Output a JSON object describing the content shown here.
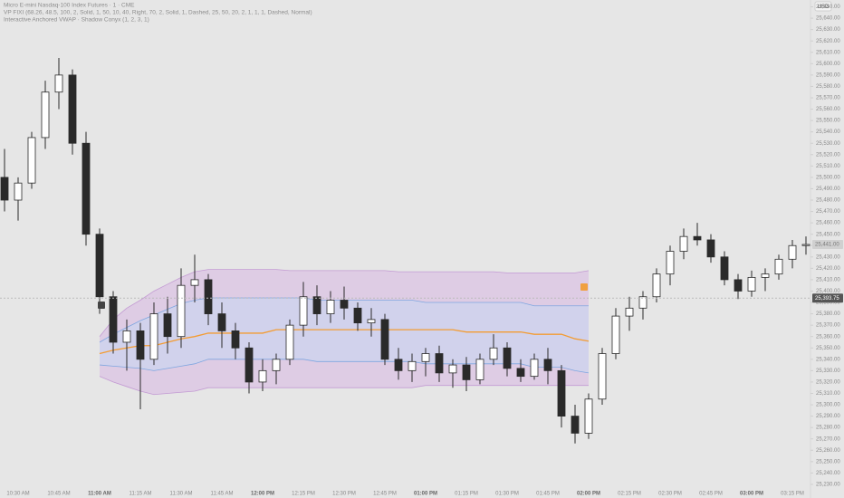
{
  "header": {
    "symbol": "Micro E-mini Nasdaq-100 Index Futures · 1 · CME",
    "indicator_1": "VP FIXI (68.26, 48.5, 100, 2, Solid, 1, 50, 10, 40, Right, 70, 2, Solid, 1, Dashed, 25, 50, 20, 2, 1, 1, 1, Dashed, Normal)",
    "indicator_2": "Interactive Anchored VWAP · Shadow Conyx (1, 2, 3, 1)",
    "currency": "USD"
  },
  "chart_data": {
    "type": "candlestick",
    "grid": false,
    "categories": [
      null,
      "10:30 AM",
      null,
      null,
      "10:45 AM",
      null,
      null,
      "11:00 AM",
      null,
      null,
      "11:15 AM",
      null,
      null,
      "11:30 AM",
      null,
      null,
      "11:45 AM",
      null,
      null,
      "12:00 PM",
      null,
      null,
      "12:15 PM",
      null,
      null,
      "12:30 PM",
      null,
      null,
      "12:45 PM",
      null,
      null,
      "01:00 PM",
      null,
      null,
      "01:15 PM",
      null,
      null,
      "01:30 PM",
      null,
      null,
      "01:45 PM",
      null,
      null,
      "02:00 PM",
      null,
      null,
      "02:15 PM",
      null,
      null,
      "02:30 PM",
      null,
      null,
      "02:45 PM",
      null,
      null,
      "03:00 PM",
      null,
      null,
      "03:15 PM",
      null
    ],
    "open": [
      25500,
      25480,
      25495,
      25535,
      25575,
      25590,
      25530,
      25450,
      25395,
      25355,
      25365,
      25340,
      25380,
      25360,
      25405,
      25410,
      25380,
      25365,
      25350,
      25320,
      25330,
      25340,
      25370,
      25395,
      25380,
      25392,
      25385,
      25372,
      25375,
      25340,
      25330,
      25338,
      25345,
      25328,
      25335,
      25322,
      25340,
      25350,
      25332,
      25325,
      25340,
      25330,
      25290,
      25275,
      25305,
      25345,
      25378,
      25385,
      25395,
      25415,
      25435,
      25448,
      25445,
      25430,
      25410,
      25400,
      25412,
      25415,
      25428,
      25440
    ],
    "high": [
      25525,
      25500,
      25540,
      25585,
      25605,
      25595,
      25540,
      25455,
      25400,
      25375,
      25372,
      25390,
      25395,
      25420,
      25432,
      25415,
      25390,
      25372,
      25355,
      25340,
      25345,
      25375,
      25408,
      25405,
      25400,
      25404,
      25390,
      25385,
      25380,
      25350,
      25345,
      25350,
      25352,
      25340,
      25342,
      25345,
      25362,
      25355,
      25340,
      25345,
      25350,
      25335,
      25300,
      25310,
      25350,
      25385,
      25395,
      25400,
      25420,
      25440,
      25455,
      25460,
      25450,
      25435,
      25415,
      25418,
      25420,
      25432,
      25445,
      25448
    ],
    "low": [
      25470,
      25462,
      25490,
      25525,
      25560,
      25520,
      25440,
      25380,
      25345,
      25330,
      25296,
      25335,
      25345,
      25350,
      25390,
      25370,
      25350,
      25340,
      25310,
      25312,
      25318,
      25335,
      25360,
      25370,
      25372,
      25375,
      25365,
      25360,
      25335,
      25322,
      25320,
      25325,
      25320,
      25315,
      25312,
      25318,
      25335,
      25325,
      25320,
      25322,
      25318,
      25280,
      25266,
      25270,
      25300,
      25340,
      25365,
      25375,
      25390,
      25405,
      25428,
      25440,
      25425,
      25405,
      25393,
      25395,
      25400,
      25410,
      25420,
      25432
    ],
    "close": [
      25480,
      25495,
      25535,
      25575,
      25590,
      25530,
      25450,
      25395,
      25355,
      25365,
      25340,
      25380,
      25360,
      25405,
      25410,
      25380,
      25365,
      25350,
      25320,
      25330,
      25340,
      25370,
      25395,
      25380,
      25392,
      25385,
      25372,
      25375,
      25340,
      25330,
      25338,
      25345,
      25328,
      25335,
      25322,
      25340,
      25350,
      25332,
      25325,
      25340,
      25330,
      25290,
      25275,
      25305,
      25345,
      25378,
      25385,
      25395,
      25415,
      25435,
      25448,
      25445,
      25430,
      25410,
      25400,
      25412,
      25415,
      25428,
      25440,
      25441
    ],
    "up_color": "#ffffff",
    "down_color": "#2a2a2a",
    "wick_color": "#2a2a2a",
    "bands": [
      {
        "color": "#c39bd3",
        "fill": "#dcc6e4",
        "values": [
          null,
          null,
          null,
          null,
          null,
          null,
          null,
          25360,
          25375,
          25385,
          25392,
          25400,
          25406,
          25412,
          25417,
          25419,
          25419,
          25419,
          25419,
          25419,
          25419,
          25418,
          25418,
          25418,
          25418,
          25418,
          25418,
          25418,
          25418,
          25417,
          25417,
          25417,
          25417,
          25417,
          25417,
          25417,
          25417,
          25416,
          25416,
          25416,
          25416,
          25416,
          25416,
          25418,
          null,
          null,
          null,
          null,
          null,
          null,
          null,
          null,
          null,
          null,
          null,
          null,
          null,
          null,
          null,
          null
        ]
      },
      {
        "color": "#7ea6e0",
        "fill": "#cdd3ee",
        "values": [
          null,
          null,
          null,
          null,
          null,
          null,
          null,
          25355,
          25362,
          25368,
          25374,
          25379,
          25384,
          25389,
          25392,
          25394,
          25394,
          25394,
          25394,
          25394,
          25394,
          25394,
          25394,
          25392,
          25392,
          25392,
          25392,
          25392,
          25392,
          25392,
          25392,
          25390,
          25390,
          25390,
          25390,
          25390,
          25390,
          25390,
          25390,
          25387,
          25387,
          25387,
          25387,
          25387,
          null,
          null,
          null,
          null,
          null,
          null,
          null,
          null,
          null,
          null,
          null,
          null,
          null,
          null,
          null,
          null
        ]
      },
      {
        "color": "#f39c33",
        "values": [
          null,
          null,
          null,
          null,
          null,
          null,
          null,
          25345,
          25348,
          25350,
          25352,
          25352,
          25355,
          25358,
          25360,
          25363,
          25363,
          25363,
          25363,
          25363,
          25366,
          25366,
          25366,
          25366,
          25366,
          25366,
          25366,
          25366,
          25366,
          25366,
          25366,
          25366,
          25366,
          25366,
          25364,
          25364,
          25364,
          25364,
          25364,
          25362,
          25362,
          25362,
          25358,
          25356,
          null,
          null,
          null,
          null,
          null,
          null,
          null,
          null,
          null,
          null,
          null,
          null,
          null,
          null,
          null,
          null
        ]
      },
      {
        "color": "#7ea6e0",
        "values": [
          null,
          null,
          null,
          null,
          null,
          null,
          null,
          25335,
          25334,
          25333,
          25332,
          25330,
          25332,
          25334,
          25336,
          25340,
          25340,
          25340,
          25340,
          25340,
          25340,
          25340,
          25340,
          25338,
          25338,
          25338,
          25338,
          25338,
          25338,
          25338,
          25338,
          25336,
          25336,
          25336,
          25336,
          25336,
          25336,
          25336,
          25336,
          25333,
          25333,
          25333,
          25330,
          25328,
          null,
          null,
          null,
          null,
          null,
          null,
          null,
          null,
          null,
          null,
          null,
          null,
          null,
          null,
          null,
          null
        ]
      },
      {
        "color": "#c39bd3",
        "values": [
          null,
          null,
          null,
          null,
          null,
          null,
          null,
          25325,
          25320,
          25316,
          25312,
          25309,
          25310,
          25311,
          25312,
          25315,
          25315,
          25315,
          25315,
          25315,
          25315,
          25315,
          25315,
          25315,
          25315,
          25315,
          25315,
          25315,
          25315,
          25315,
          25315,
          25317,
          25317,
          25317,
          25317,
          25317,
          25317,
          25317,
          25317,
          25317,
          25317,
          25317,
          25317,
          25317,
          null,
          null,
          null,
          null,
          null,
          null,
          null,
          null,
          null,
          null,
          null,
          null,
          null,
          null,
          null,
          null
        ]
      }
    ],
    "price_tags": [
      {
        "value": 25441,
        "label": "25,441.00",
        "color": "#d0d0d0"
      },
      {
        "value": 25393.75,
        "label": "25,393.75",
        "color": "#555555"
      }
    ],
    "ylim": [
      25218,
      25656
    ],
    "yticks": [
      {
        "value": 25230,
        "label": "25,230.00"
      },
      {
        "value": 25240,
        "label": "25,240.00"
      },
      {
        "value": 25250,
        "label": "25,250.00"
      },
      {
        "value": 25260,
        "label": "25,260.00"
      },
      {
        "value": 25270,
        "label": "25,270.00"
      },
      {
        "value": 25280,
        "label": "25,280.00"
      },
      {
        "value": 25290,
        "label": "25,290.00"
      },
      {
        "value": 25300,
        "label": "25,300.00"
      },
      {
        "value": 25310,
        "label": "25,310.00"
      },
      {
        "value": 25320,
        "label": "25,320.00"
      },
      {
        "value": 25330,
        "label": "25,330.00"
      },
      {
        "value": 25340,
        "label": "25,340.00"
      },
      {
        "value": 25350,
        "label": "25,350.00"
      },
      {
        "value": 25360,
        "label": "25,360.00"
      },
      {
        "value": 25370,
        "label": "25,370.00"
      },
      {
        "value": 25380,
        "label": "25,380.00"
      },
      {
        "value": 25390,
        "label": "25,390.00"
      },
      {
        "value": 25400,
        "label": "25,400.00"
      },
      {
        "value": 25410,
        "label": "25,410.00"
      },
      {
        "value": 25420,
        "label": "25,420.00"
      },
      {
        "value": 25430,
        "label": "25,430.00"
      },
      {
        "value": 25440,
        "label": "25,440.00"
      },
      {
        "value": 25450,
        "label": "25,450.00"
      },
      {
        "value": 25460,
        "label": "25,460.00"
      },
      {
        "value": 25470,
        "label": "25,470.00"
      },
      {
        "value": 25480,
        "label": "25,480.00"
      },
      {
        "value": 25490,
        "label": "25,490.00"
      },
      {
        "value": 25500,
        "label": "25,500.00"
      },
      {
        "value": 25510,
        "label": "25,510.00"
      },
      {
        "value": 25520,
        "label": "25,520.00"
      },
      {
        "value": 25530,
        "label": "25,530.00"
      },
      {
        "value": 25540,
        "label": "25,540.00"
      },
      {
        "value": 25550,
        "label": "25,550.00"
      },
      {
        "value": 25560,
        "label": "25,560.00"
      },
      {
        "value": 25570,
        "label": "25,570.00"
      },
      {
        "value": 25580,
        "label": "25,580.00"
      },
      {
        "value": 25590,
        "label": "25,590.00"
      },
      {
        "value": 25600,
        "label": "25,600.00"
      },
      {
        "value": 25610,
        "label": "25,610.00"
      },
      {
        "value": 25620,
        "label": "25,620.00"
      },
      {
        "value": 25630,
        "label": "25,630.00"
      },
      {
        "value": 25640,
        "label": "25,640.00"
      },
      {
        "value": 25650,
        "label": "25,650.00"
      }
    ]
  }
}
